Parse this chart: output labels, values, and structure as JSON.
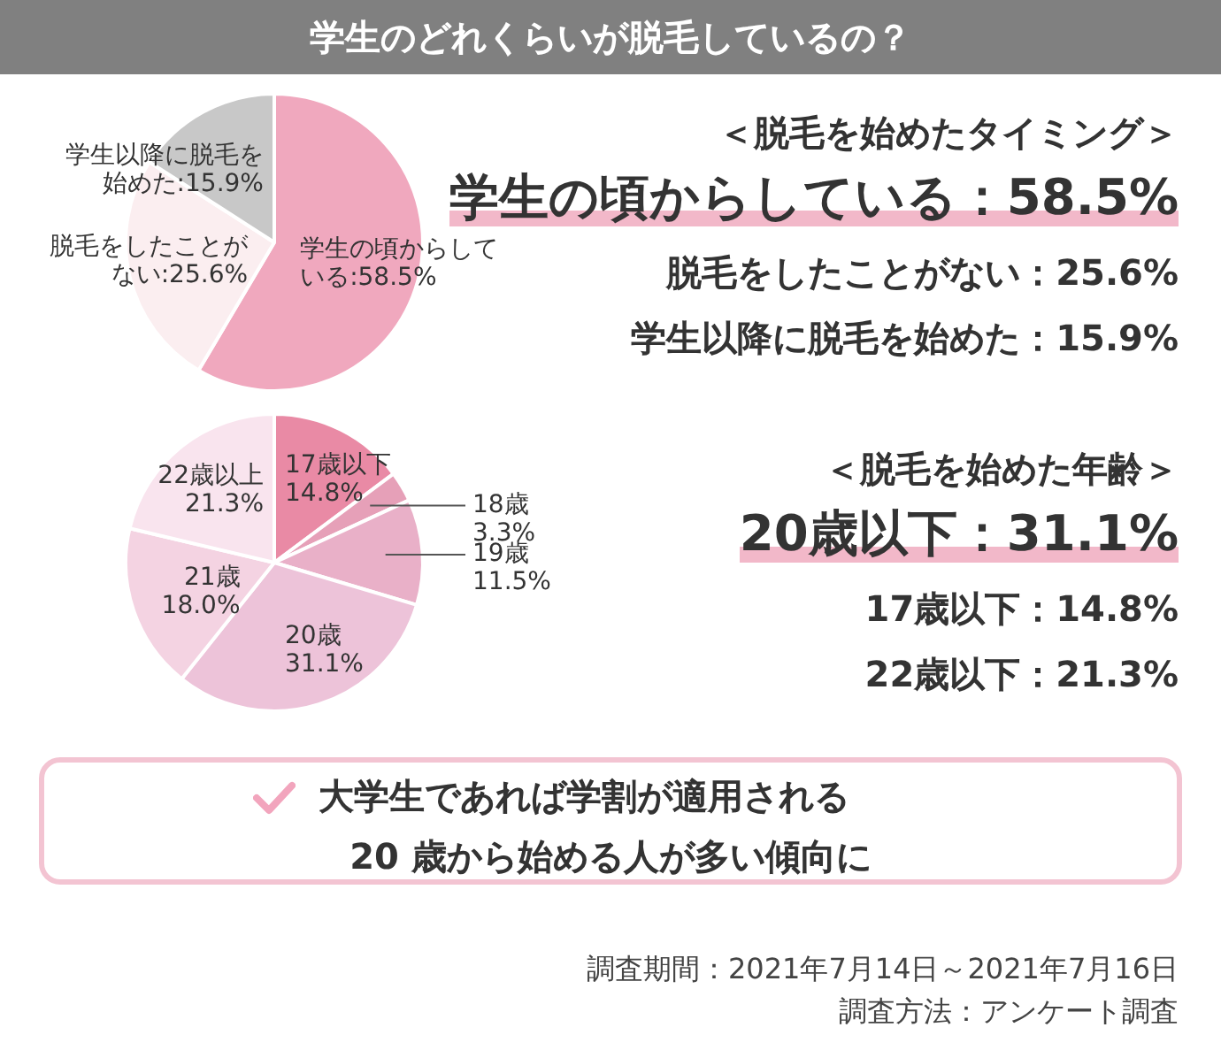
{
  "chart_data": [
    {
      "type": "pie",
      "title": "学生のどれくらいが脱毛しているの？",
      "categories": [
        "学生の頃からしている",
        "脱毛をしたことがない",
        "学生以降に脱毛を始めた"
      ],
      "values": [
        58.5,
        25.6,
        15.9
      ],
      "colors": [
        "#f0a8be",
        "#fbeef0",
        "#c8c8c8"
      ],
      "value_labels": [
        ":58.5%",
        ":25.6%",
        ":15.9%"
      ],
      "annotations": [
        "＜脱毛を始めたタイミング＞",
        "学生の頃からしている：58.5%",
        "脱毛をしたことがない：25.6%",
        "学生以降に脱毛を始めた：15.9%"
      ]
    },
    {
      "type": "pie",
      "categories": [
        "17歳以下",
        "18歳",
        "19歳",
        "20歳",
        "21歳",
        "22歳以上"
      ],
      "values": [
        14.8,
        3.3,
        11.5,
        31.1,
        18.0,
        21.3
      ],
      "colors": [
        "#e98aa5",
        "#e6a0b8",
        "#e9b0c8",
        "#edc3d9",
        "#f4d3e2",
        "#f9e4ee"
      ],
      "value_labels": [
        "14.8%",
        "3.3%",
        "11.5%",
        "31.1%",
        "18.0%",
        "21.3%"
      ],
      "annotations": [
        "＜脱毛を始めた年齢＞",
        "20歳以下：31.1%",
        "17歳以下：14.8%",
        "22歳以下：21.3%"
      ]
    },
    {
      "type": "other",
      "annotations": [
        "大学生であれば学割が適用される",
        "20 歳から始める人が多い傾向に",
        "調査期間：2021年7月14日～2021年7月16日",
        "調査方法：アンケート調査"
      ]
    }
  ]
}
